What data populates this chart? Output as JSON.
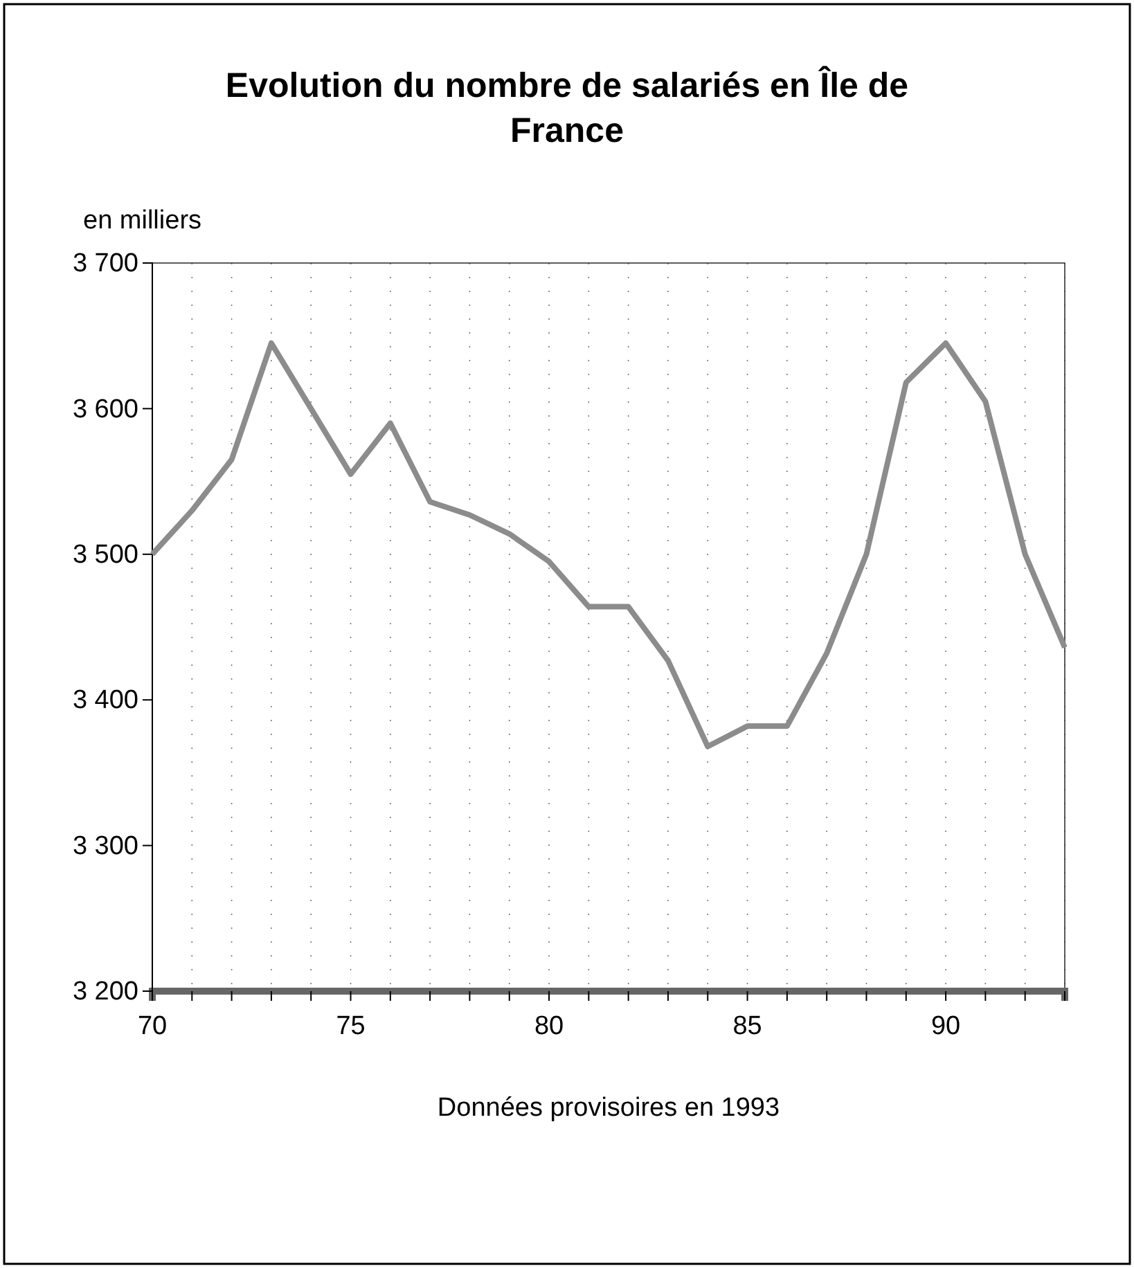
{
  "chart_data": {
    "type": "line",
    "title": "Evolution du nombre de salariés en Île de France",
    "ylabel": "en milliers",
    "annotations": [
      "Données provisoires en 1993"
    ],
    "x": [
      70,
      71,
      72,
      73,
      74,
      75,
      76,
      77,
      78,
      79,
      80,
      81,
      82,
      83,
      84,
      85,
      86,
      87,
      88,
      89,
      90,
      91,
      92,
      93
    ],
    "series": [
      {
        "color": "#8c8c8c",
        "values": [
          3500,
          3530,
          3565,
          3645,
          3600,
          3555,
          3590,
          3536,
          3527,
          3514,
          3495,
          3464,
          3464,
          3427,
          3368,
          3382,
          3382,
          3432,
          3500,
          3618,
          3645,
          3605,
          3500,
          3436
        ]
      }
    ],
    "xlim": [
      70,
      93
    ],
    "xticks": [
      70,
      {
        "value": 71,
        "label": null
      },
      {
        "value": 72,
        "label": null
      },
      {
        "value": 73,
        "label": null
      },
      {
        "value": 74,
        "label": null
      },
      75,
      {
        "value": 76,
        "label": null
      },
      {
        "value": 77,
        "label": null
      },
      {
        "value": 78,
        "label": null
      },
      {
        "value": 79,
        "label": null
      },
      80,
      {
        "value": 81,
        "label": null
      },
      {
        "value": 82,
        "label": null
      },
      {
        "value": 83,
        "label": null
      },
      {
        "value": 84,
        "label": null
      },
      85,
      {
        "value": 86,
        "label": null
      },
      {
        "value": 87,
        "label": null
      },
      {
        "value": 88,
        "label": null
      },
      {
        "value": 89,
        "label": null
      },
      90,
      {
        "value": 91,
        "label": null
      },
      {
        "value": 92,
        "label": null
      },
      {
        "value": 93,
        "label": null
      }
    ],
    "ylim": [
      3200,
      3700
    ],
    "yticks": [
      {
        "value": 3200,
        "label": "3 200"
      },
      {
        "value": 3300,
        "label": "3 300"
      },
      {
        "value": 3400,
        "label": "3 400"
      },
      {
        "value": 3500,
        "label": "3 500"
      },
      {
        "value": 3600,
        "label": "3 600"
      },
      {
        "value": 3700,
        "label": "3 700"
      }
    ],
    "grid": "x",
    "marker": "none",
    "line_style": "solid"
  }
}
